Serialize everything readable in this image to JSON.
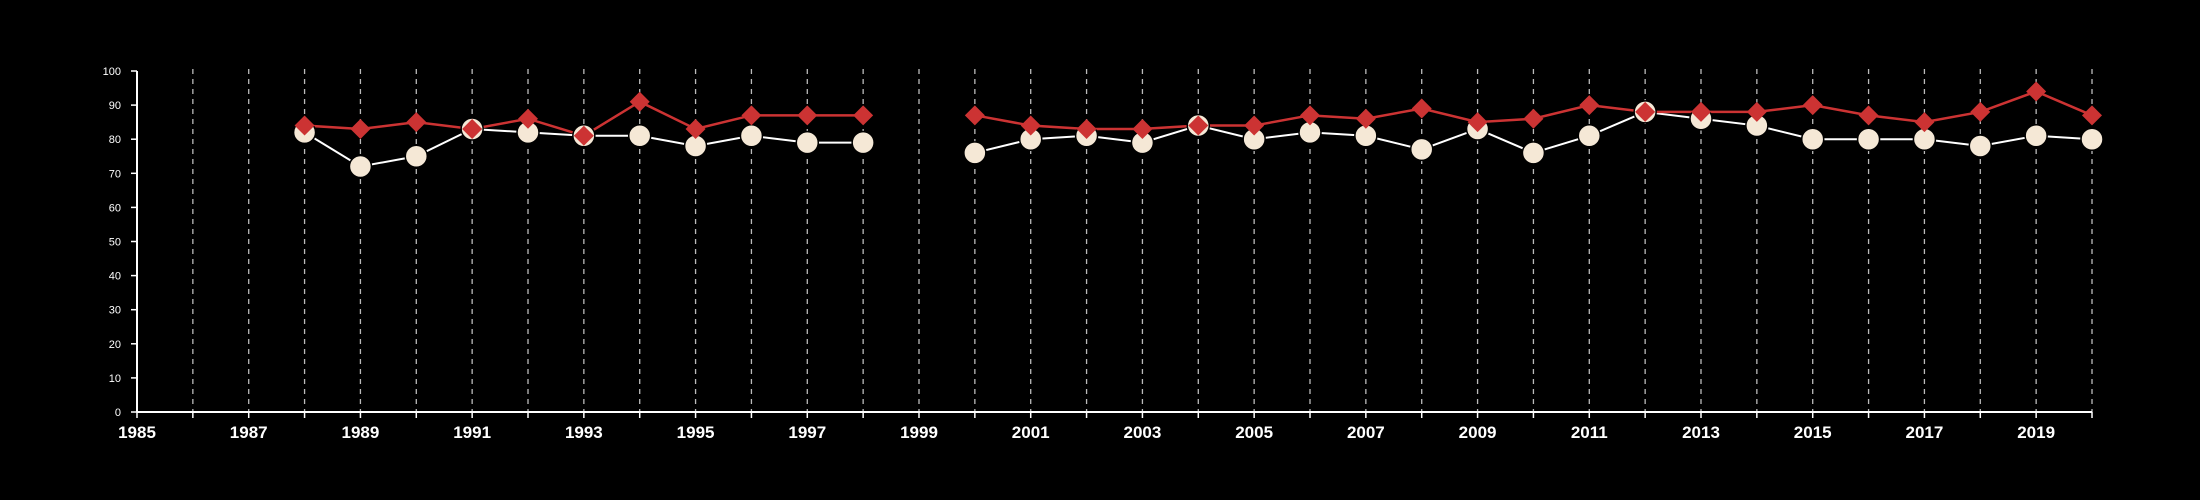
{
  "chart_data": {
    "type": "line",
    "title": "",
    "xlabel": "",
    "ylabel": "",
    "xlim": [
      1985,
      2020
    ],
    "ylim": [
      0,
      100
    ],
    "x_ticks": [
      1985,
      1987,
      1989,
      1991,
      1993,
      1995,
      1997,
      1999,
      2001,
      2003,
      2005,
      2007,
      2009,
      2011,
      2013,
      2015,
      2017,
      2019
    ],
    "y_ticks": [
      0,
      10,
      20,
      30,
      40,
      50,
      60,
      70,
      80,
      90,
      100
    ],
    "vertical_grid": "dashed, one per year",
    "legend": "none",
    "series": [
      {
        "color": "#f5e8d6",
        "marker": "circle",
        "line_color": "#ffffff",
        "points": [
          [
            1988,
            82
          ],
          [
            1989,
            72
          ],
          [
            1990,
            75
          ],
          [
            1991,
            83
          ],
          [
            1992,
            82
          ],
          [
            1993,
            81
          ],
          [
            1994,
            81
          ],
          [
            1995,
            78
          ],
          [
            1996,
            81
          ],
          [
            1997,
            79
          ],
          [
            1998,
            79
          ],
          [
            2000,
            76
          ],
          [
            2001,
            80
          ],
          [
            2002,
            81
          ],
          [
            2003,
            79
          ],
          [
            2004,
            84
          ],
          [
            2005,
            80
          ],
          [
            2006,
            82
          ],
          [
            2007,
            81
          ],
          [
            2008,
            77
          ],
          [
            2009,
            83
          ],
          [
            2010,
            76
          ],
          [
            2011,
            81
          ],
          [
            2012,
            88
          ],
          [
            2013,
            86
          ],
          [
            2014,
            84
          ],
          [
            2015,
            80
          ],
          [
            2016,
            80
          ],
          [
            2017,
            80
          ],
          [
            2018,
            78
          ],
          [
            2019,
            81
          ],
          [
            2020,
            80
          ]
        ]
      },
      {
        "color": "#cc3333",
        "marker": "diamond",
        "line_color": "#cc3333",
        "points": [
          [
            1988,
            84
          ],
          [
            1989,
            83
          ],
          [
            1990,
            85
          ],
          [
            1991,
            83
          ],
          [
            1992,
            86
          ],
          [
            1993,
            81
          ],
          [
            1994,
            91
          ],
          [
            1995,
            83
          ],
          [
            1996,
            87
          ],
          [
            1997,
            87
          ],
          [
            1998,
            87
          ],
          [
            2000,
            87
          ],
          [
            2001,
            84
          ],
          [
            2002,
            83
          ],
          [
            2003,
            83
          ],
          [
            2004,
            84
          ],
          [
            2005,
            84
          ],
          [
            2006,
            87
          ],
          [
            2007,
            86
          ],
          [
            2008,
            89
          ],
          [
            2009,
            85
          ],
          [
            2010,
            86
          ],
          [
            2011,
            90
          ],
          [
            2012,
            88
          ],
          [
            2013,
            88
          ],
          [
            2014,
            88
          ],
          [
            2015,
            90
          ],
          [
            2016,
            87
          ],
          [
            2017,
            85
          ],
          [
            2018,
            88
          ],
          [
            2019,
            94
          ],
          [
            2020,
            87
          ]
        ]
      }
    ]
  }
}
